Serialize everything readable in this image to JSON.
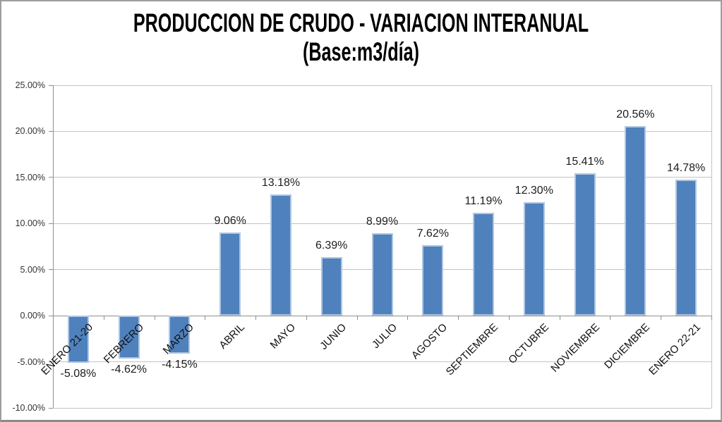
{
  "chart_data": {
    "type": "bar",
    "title": "PRODUCCION DE CRUDO - VARIACION INTERANUAL",
    "subtitle": "(Base:m3/día)",
    "categories": [
      "ENERO 21-20",
      "FEBRERO",
      "MARZO",
      "ABRIL",
      "MAYO",
      "JUNIO",
      "JULIO",
      "AGOSTO",
      "SEPTIEMBRE",
      "OCTUBRE",
      "NOVIEMBRE",
      "DICIEMBRE",
      "ENERO 22-21"
    ],
    "values": [
      -5.08,
      -4.62,
      -4.15,
      9.06,
      13.18,
      6.39,
      8.99,
      7.62,
      11.19,
      12.3,
      15.41,
      20.56,
      14.78
    ],
    "data_labels": [
      "-5.08%",
      "-4.62%",
      "-4.15%",
      "9.06%",
      "13.18%",
      "6.39%",
      "8.99%",
      "7.62%",
      "11.19%",
      "12.30%",
      "15.41%",
      "20.56%",
      "14.78%"
    ],
    "ylim": [
      -10,
      25
    ],
    "ytick_interval": 5,
    "yticks": [
      {
        "value": 25,
        "label": "25.00%"
      },
      {
        "value": 20,
        "label": "20.00%"
      },
      {
        "value": 15,
        "label": "15.00%"
      },
      {
        "value": 10,
        "label": "10.00%"
      },
      {
        "value": 5,
        "label": "5.00%"
      },
      {
        "value": 0,
        "label": "0.00%"
      },
      {
        "value": -5,
        "label": "-5.00%"
      },
      {
        "value": -10,
        "label": "-10.00%"
      }
    ],
    "grid": true,
    "legend": "none",
    "colors": {
      "bar_fill": "#4F81BD",
      "bar_border": "#AEC6E2",
      "gridline": "#C3C3C3",
      "axis_line": "#8F8F8F",
      "plot_border": "#C3C3C3",
      "label_text": "#1C1C1C",
      "axis_text": "#333333",
      "title_text": "#000000",
      "background": "#FFFFFF",
      "chart_border": "#9E9E9E"
    }
  }
}
